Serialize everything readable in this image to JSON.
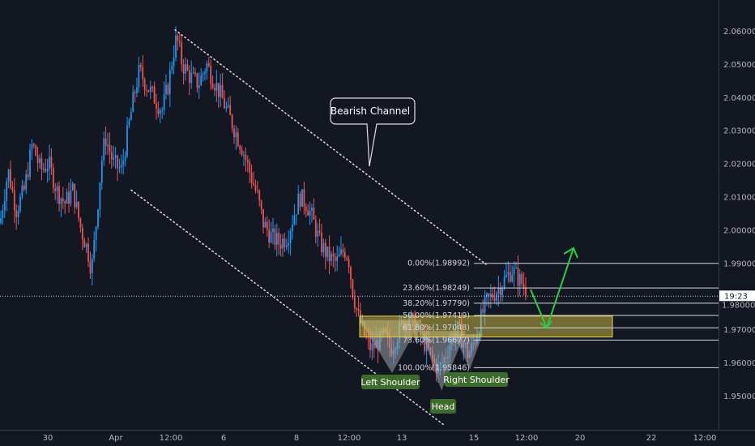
{
  "chart_data": {
    "type": "candlestick",
    "colors": {
      "up": "#2196f3",
      "down": "#ef5350",
      "background": "#131722",
      "grid": "#ffffff",
      "zone": "#e6d34a",
      "arrow": "#2ecc40",
      "label_bg": "#3d6b2c"
    },
    "ylim": [
      1.9405,
      2.0675
    ],
    "y_ticks": [
      "2.06000",
      "2.05000",
      "2.04000",
      "2.03000",
      "2.02000",
      "2.01000",
      "2.00000",
      "1.99000",
      "1.98000",
      "1.97000",
      "1.96000",
      "1.95000"
    ],
    "x_ticks": [
      "30",
      "Apr",
      "12:00",
      "6",
      "12:00",
      "8",
      "12:00",
      "13",
      "12:00",
      "15",
      "12:00",
      "20",
      "22",
      "12:00"
    ],
    "current_price": "1.98000",
    "countdown": "19:23",
    "path": [
      [
        0,
        2.002
      ],
      [
        10,
        2.018
      ],
      [
        20,
        2.006
      ],
      [
        30,
        2.012
      ],
      [
        40,
        2.026
      ],
      [
        50,
        2.018
      ],
      [
        60,
        2.02
      ],
      [
        70,
        2.012
      ],
      [
        80,
        2.008
      ],
      [
        90,
        2.012
      ],
      [
        100,
        2.0
      ],
      [
        108,
        1.994
      ],
      [
        113,
        1.988
      ],
      [
        118,
        2.0
      ],
      [
        125,
        2.02
      ],
      [
        130,
        2.028
      ],
      [
        140,
        2.02
      ],
      [
        150,
        2.018
      ],
      [
        158,
        2.03
      ],
      [
        165,
        2.04
      ],
      [
        172,
        2.048
      ],
      [
        180,
        2.044
      ],
      [
        190,
        2.04
      ],
      [
        200,
        2.036
      ],
      [
        208,
        2.044
      ],
      [
        213,
        2.052
      ],
      [
        218,
        2.058
      ],
      [
        225,
        2.05
      ],
      [
        235,
        2.046
      ],
      [
        245,
        2.044
      ],
      [
        255,
        2.05
      ],
      [
        262,
        2.046
      ],
      [
        270,
        2.042
      ],
      [
        280,
        2.036
      ],
      [
        290,
        2.03
      ],
      [
        300,
        2.024
      ],
      [
        310,
        2.016
      ],
      [
        318,
        2.01
      ],
      [
        325,
        2.002
      ],
      [
        335,
        1.998
      ],
      [
        345,
        1.996
      ],
      [
        355,
        1.998
      ],
      [
        362,
        2.004
      ],
      [
        370,
        2.01
      ],
      [
        378,
        2.008
      ],
      [
        385,
        2.004
      ],
      [
        395,
        1.996
      ],
      [
        405,
        1.992
      ],
      [
        415,
        1.99
      ],
      [
        425,
        1.994
      ],
      [
        430,
        1.992
      ],
      [
        435,
        1.982
      ],
      [
        442,
        1.974
      ],
      [
        450,
        1.968
      ],
      [
        458,
        1.964
      ],
      [
        466,
        1.966
      ],
      [
        475,
        1.968
      ],
      [
        482,
        1.964
      ],
      [
        490,
        1.968
      ],
      [
        497,
        1.972
      ],
      [
        505,
        1.974
      ],
      [
        512,
        1.97
      ],
      [
        520,
        1.968
      ],
      [
        528,
        1.964
      ],
      [
        535,
        1.96
      ],
      [
        542,
        1.958
      ],
      [
        550,
        1.962
      ],
      [
        558,
        1.968
      ],
      [
        566,
        1.97
      ],
      [
        572,
        1.966
      ],
      [
        578,
        1.962
      ],
      [
        585,
        1.966
      ],
      [
        592,
        1.972
      ],
      [
        600,
        1.978
      ],
      [
        607,
        1.98
      ],
      [
        614,
        1.982
      ],
      [
        620,
        1.984
      ],
      [
        626,
        1.986
      ],
      [
        632,
        1.988
      ],
      [
        638,
        1.986
      ],
      [
        644,
        1.984
      ],
      [
        650,
        1.982
      ]
    ],
    "channel": {
      "upper": [
        [
          216,
          2.0603
        ],
        [
          600,
          1.9896
        ]
      ],
      "lower": [
        [
          162,
          2.012
        ],
        [
          548,
          1.9412
        ]
      ]
    },
    "fib": {
      "x_start": 585,
      "x_end": 887,
      "levels": [
        {
          "label": "0.00%(1.98992)",
          "value": 1.98992
        },
        {
          "label": "23.60%(1.98249)",
          "value": 1.98249
        },
        {
          "label": "38.20%(1.97790)",
          "value": 1.9779
        },
        {
          "label": "50.00%(1.97419)",
          "value": 1.97419
        },
        {
          "label": "61.80%(1.97048)",
          "value": 1.97048
        },
        {
          "label": "73.60%(1.96677)",
          "value": 1.96677
        },
        {
          "label": "100.00%(1.95846)",
          "value": 1.95846
        }
      ]
    },
    "zone": {
      "x0": 444,
      "x1": 756,
      "y_top": 1.974,
      "y_bot": 1.9677
    },
    "pattern_fill": [
      [
        [
          444,
          1.9728
        ],
        [
          484,
          1.9568
        ],
        [
          520,
          1.9728
        ]
      ],
      [
        [
          520,
          1.9695
        ],
        [
          545,
          1.9515
        ],
        [
          575,
          1.9695
        ]
      ],
      [
        [
          560,
          1.9686
        ],
        [
          580,
          1.958
        ],
        [
          596,
          1.9686
        ]
      ]
    ],
    "arrow": [
      [
        655,
        1.982
      ],
      [
        675,
        1.9705
      ],
      [
        708,
        1.9945
      ]
    ],
    "annotations": {
      "callout": "Bearish Channel",
      "left_shoulder": "Left Shoulder",
      "head": "Head",
      "right_shoulder": "Right Shoulder"
    }
  }
}
